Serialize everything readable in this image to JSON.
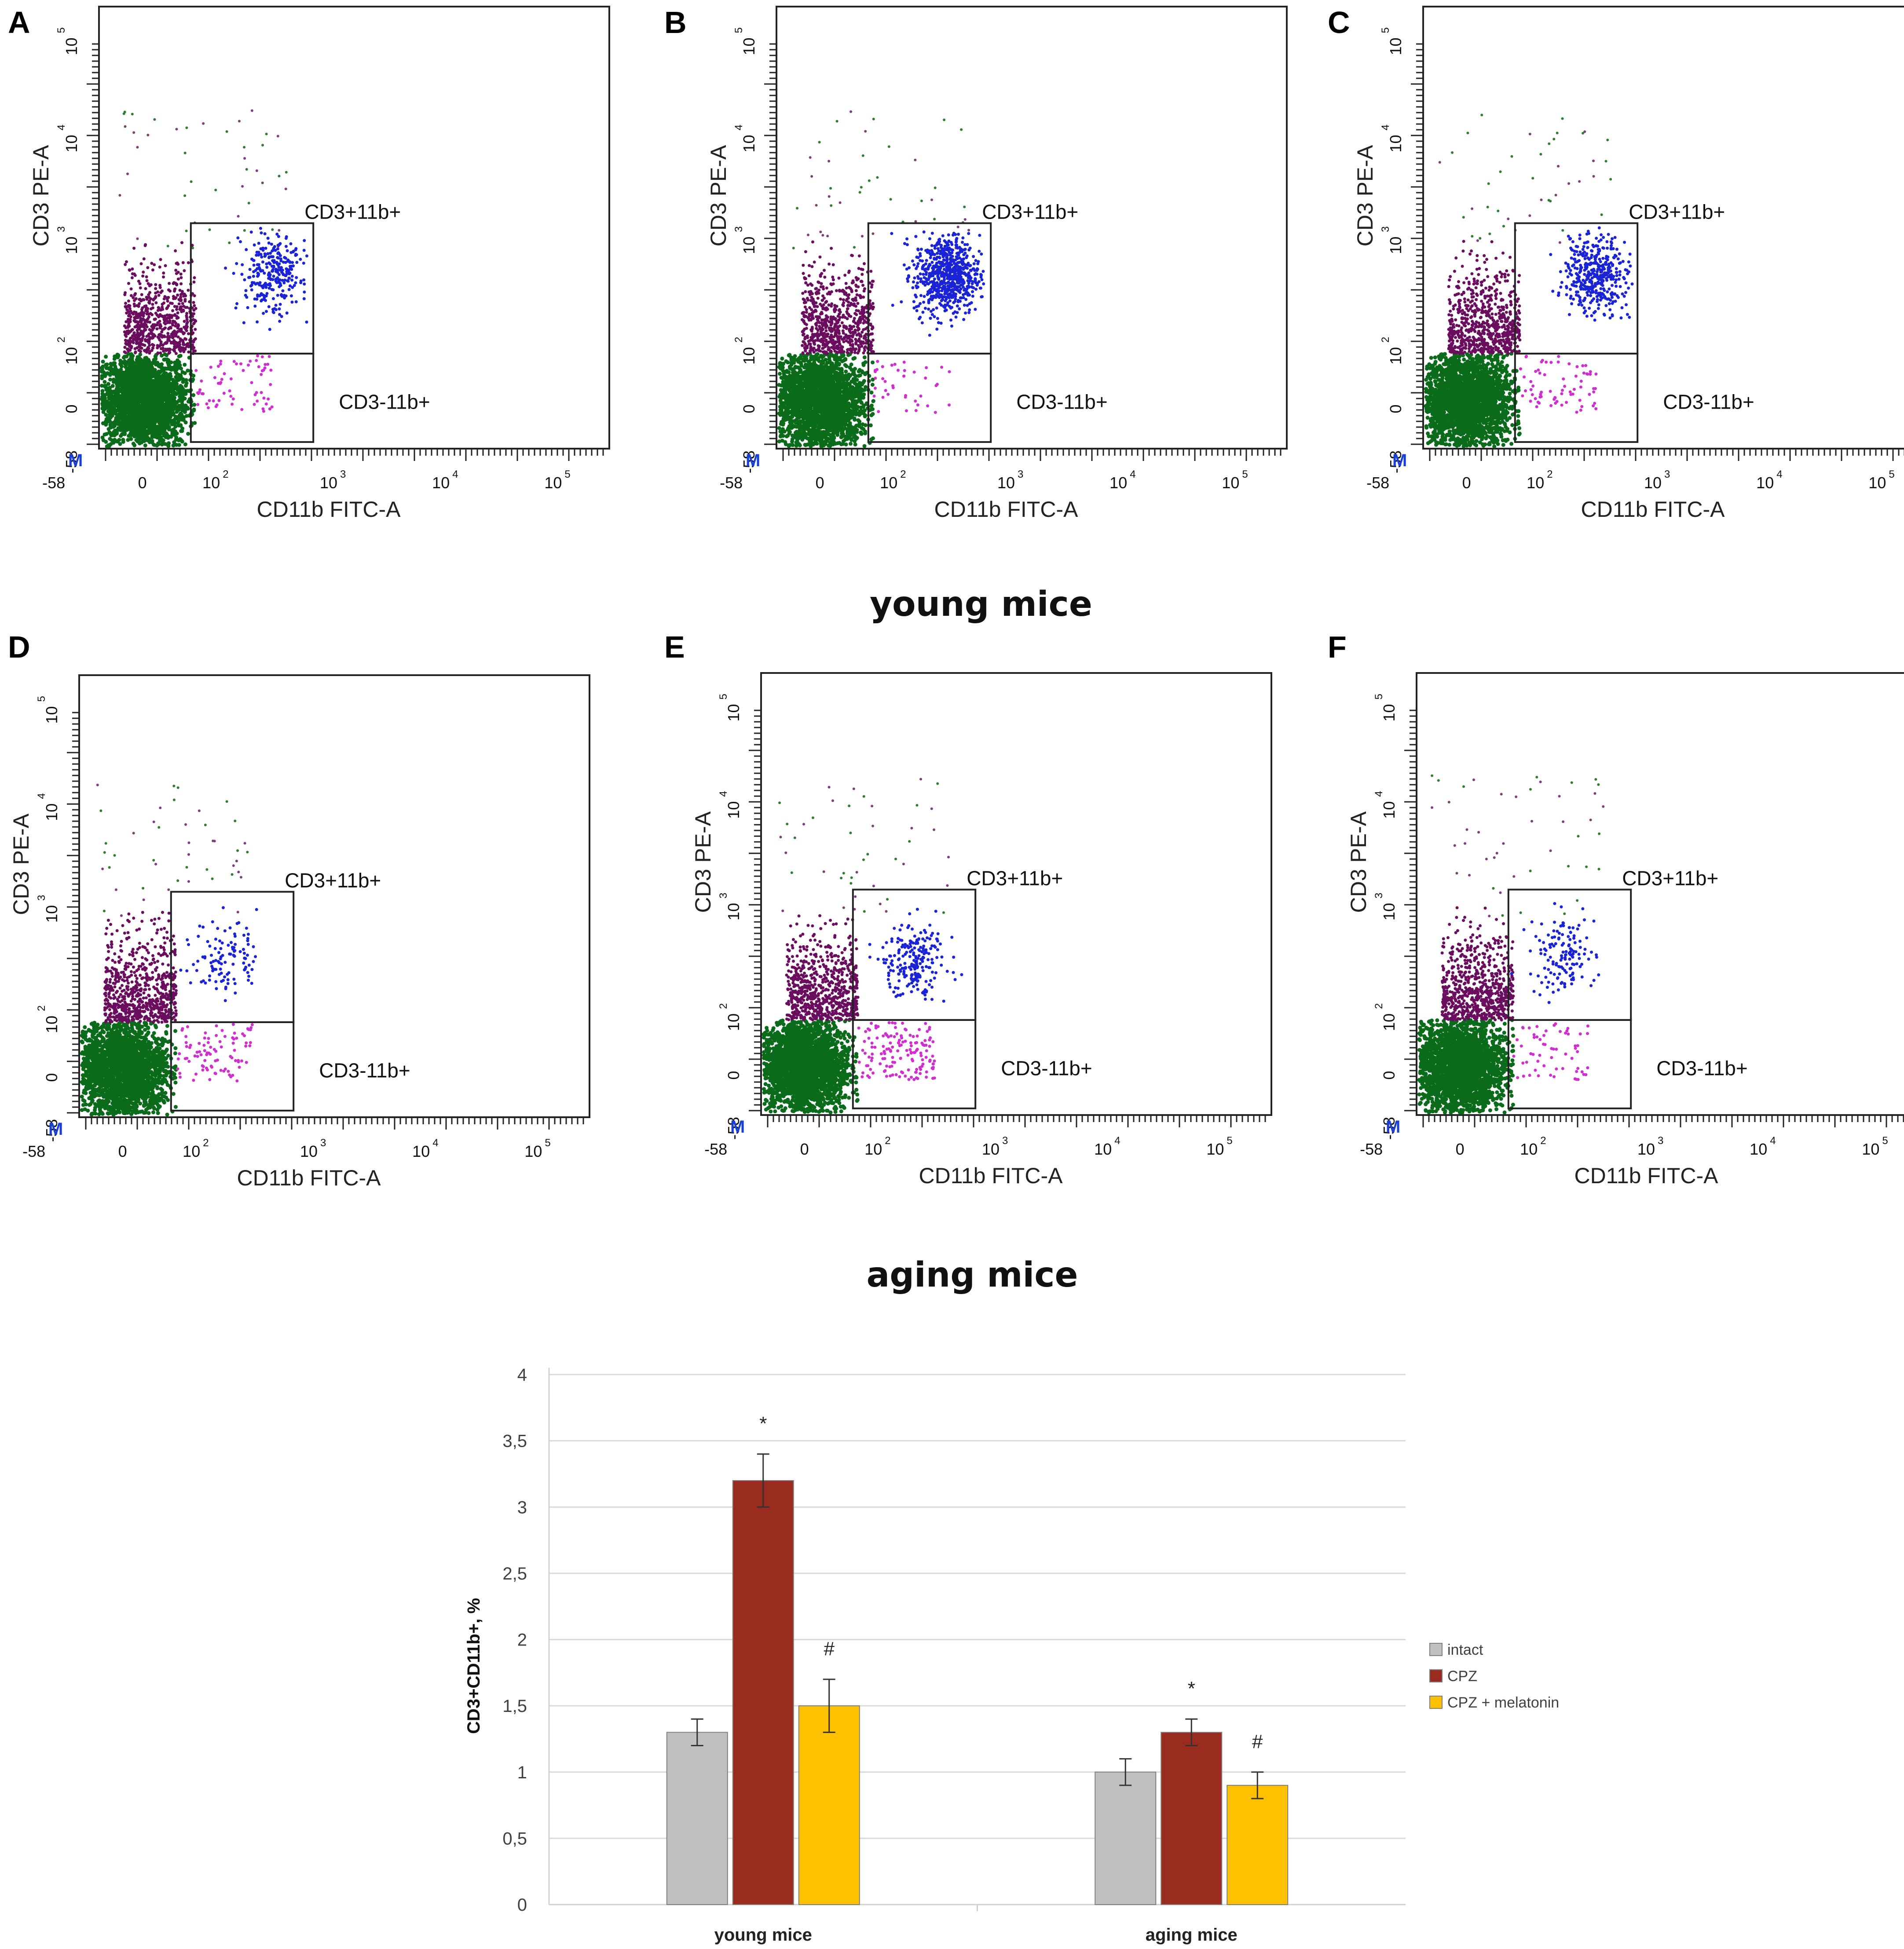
{
  "figure": {
    "row_labels": [
      "young mice",
      "aging mice"
    ],
    "quadrant_labels": {
      "upper": "CD3+11b+",
      "lower": "CD3-11b+"
    },
    "axes": {
      "x_label": "CD11b FITC-A",
      "y_label": "CD3 PE-A",
      "tick_labels": [
        "-58",
        "0",
        "10",
        "10",
        "10",
        "10"
      ],
      "tick_exponents": [
        "",
        "",
        "2",
        "3",
        "4",
        "5"
      ],
      "corner_marker": "M"
    },
    "panels": [
      {
        "id": "A",
        "row": "young mice",
        "upper_n": 300,
        "lower_n": 65,
        "upper_center": [
          0.62,
          0.63
        ]
      },
      {
        "id": "B",
        "row": "young mice",
        "upper_n": 700,
        "lower_n": 40,
        "upper_center": [
          0.6,
          0.6
        ]
      },
      {
        "id": "C",
        "row": "young mice",
        "upper_n": 420,
        "lower_n": 70,
        "upper_center": [
          0.62,
          0.62
        ]
      },
      {
        "id": "D",
        "row": "aging mice",
        "upper_n": 110,
        "lower_n": 90,
        "upper_center": [
          0.4,
          0.5
        ]
      },
      {
        "id": "E",
        "row": "aging mice",
        "upper_n": 220,
        "lower_n": 150,
        "upper_center": [
          0.45,
          0.45
        ]
      },
      {
        "id": "F",
        "row": "aging mice",
        "upper_n": 140,
        "lower_n": 60,
        "upper_center": [
          0.4,
          0.5
        ]
      }
    ]
  },
  "chart_data": {
    "type": "bar",
    "categories": [
      "young mice",
      "aging mice"
    ],
    "series": [
      {
        "name": "intact",
        "color": "#c0c0c0",
        "values": [
          1.3,
          1.0
        ],
        "errors": [
          0.1,
          0.1
        ],
        "marks": [
          "",
          ""
        ]
      },
      {
        "name": "CPZ",
        "color": "#9a2b1f",
        "values": [
          3.2,
          1.3
        ],
        "errors": [
          0.2,
          0.1
        ],
        "marks": [
          "*",
          "*"
        ]
      },
      {
        "name": "CPZ + melatonin",
        "color": "#ffc000",
        "values": [
          1.5,
          0.9
        ],
        "errors": [
          0.2,
          0.1
        ],
        "marks": [
          "#",
          "#"
        ]
      }
    ],
    "ylabel": "CD3+CD11b+, %",
    "ylim": [
      0,
      4
    ],
    "yticks": [
      "0",
      "0,5",
      "1",
      "1,5",
      "2",
      "2,5",
      "3",
      "3,5",
      "4"
    ],
    "grid": true,
    "legend": "right"
  }
}
